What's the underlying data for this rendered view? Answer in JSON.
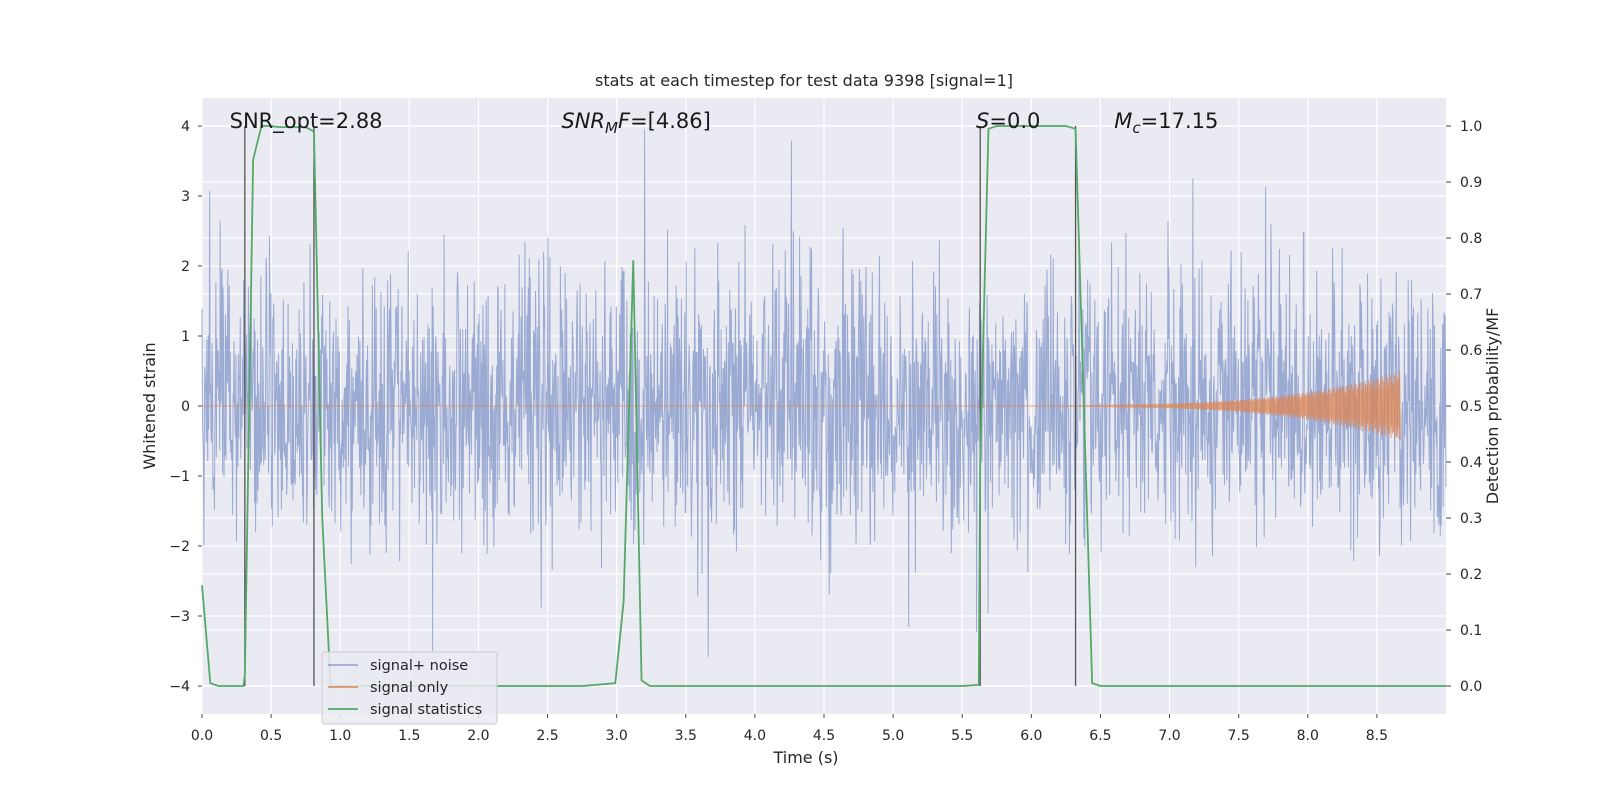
{
  "chart_data": {
    "type": "line",
    "title": "stats at each timestep for test data 9398 [signal=1]",
    "xlabel": "Time (s)",
    "ylabel_left": "Whitened strain",
    "ylabel_right": "Detection probability/MF",
    "xlim": [
      0.0,
      9.0
    ],
    "ylim_left": [
      -4.4,
      4.4
    ],
    "ylim_right": [
      -0.05,
      1.05
    ],
    "xticks": [
      0.0,
      0.5,
      1.0,
      1.5,
      2.0,
      2.5,
      3.0,
      3.5,
      4.0,
      4.5,
      5.0,
      5.5,
      6.0,
      6.5,
      7.0,
      7.5,
      8.0,
      8.5
    ],
    "xtick_labels": [
      "0.0",
      "0.5",
      "1.0",
      "1.5",
      "2.0",
      "2.5",
      "3.0",
      "3.5",
      "4.0",
      "4.5",
      "5.0",
      "5.5",
      "6.0",
      "6.5",
      "7.0",
      "7.5",
      "8.0",
      "8.5"
    ],
    "yticks_left": [
      -4,
      -3,
      -2,
      -1,
      0,
      1,
      2,
      3,
      4
    ],
    "ytick_labels_left": [
      "−4",
      "−3",
      "−2",
      "−1",
      "0",
      "1",
      "2",
      "3",
      "4"
    ],
    "yticks_right": [
      0.0,
      0.1,
      0.2,
      0.3,
      0.4,
      0.5,
      0.6,
      0.7,
      0.8,
      0.9,
      1.0
    ],
    "ytick_labels_right": [
      "0.0",
      "0.1",
      "0.2",
      "0.3",
      "0.4",
      "0.5",
      "0.6",
      "0.7",
      "0.8",
      "0.9",
      "1.0"
    ],
    "grid": true,
    "legend_position": "lower-left",
    "annotations": [
      {
        "text": "SNR_opt=2.88",
        "x": 0.2,
        "y": 4.0
      },
      {
        "text": "SNR_MF=[4.86]",
        "x": 2.6,
        "y": 4.0
      },
      {
        "text": "S=0.0",
        "x": 5.6,
        "y": 4.0
      },
      {
        "text": "M_c=17.15",
        "x": 6.6,
        "y": 4.0
      }
    ],
    "vertical_lines_x": [
      0.31,
      0.81,
      5.63,
      6.32
    ],
    "series": [
      {
        "name": "signal+ noise",
        "axis": "left",
        "color": "#8c9fcc",
        "note_description": "dense noise waveform, roughly ±1.6 with spikes to ±3.5",
        "envelope": [
          1.6,
          -1.6
        ],
        "x_range": [
          0.0,
          9.0
        ]
      },
      {
        "name": "signal only",
        "axis": "left",
        "color": "#dd8452",
        "chirp_start_x": 5.0,
        "chirp_end_x": 8.67,
        "peak_amplitude": 0.5
      },
      {
        "name": "signal statistics",
        "axis": "right",
        "color": "#55a868",
        "x": [
          0.0,
          0.06,
          0.12,
          0.3,
          0.31,
          0.37,
          0.43,
          0.5,
          0.56,
          0.62,
          0.68,
          0.75,
          0.81,
          0.87,
          0.93,
          1.0,
          1.5,
          2.0,
          2.5,
          2.75,
          2.99,
          3.05,
          3.12,
          3.18,
          3.24,
          3.3,
          3.5,
          4.0,
          4.5,
          5.0,
          5.5,
          5.62,
          5.63,
          5.69,
          5.75,
          6.0,
          6.25,
          6.32,
          6.38,
          6.44,
          6.5,
          7.0,
          7.5,
          8.0,
          8.5,
          9.0
        ],
        "values": [
          0.18,
          0.005,
          0.0,
          0.0,
          0.02,
          0.94,
          1.0,
          1.0,
          0.998,
          0.998,
          0.998,
          0.998,
          0.99,
          0.3,
          0.0,
          0.0,
          0.0,
          0.0,
          0.0,
          0.0,
          0.005,
          0.15,
          0.76,
          0.01,
          0.0,
          0.0,
          0.0,
          0.0,
          0.0,
          0.0,
          0.0,
          0.002,
          0.4,
          0.995,
          1.0,
          1.0,
          1.0,
          0.995,
          0.5,
          0.005,
          0.0,
          0.0,
          0.0,
          0.0,
          0.0,
          0.0
        ]
      }
    ]
  }
}
